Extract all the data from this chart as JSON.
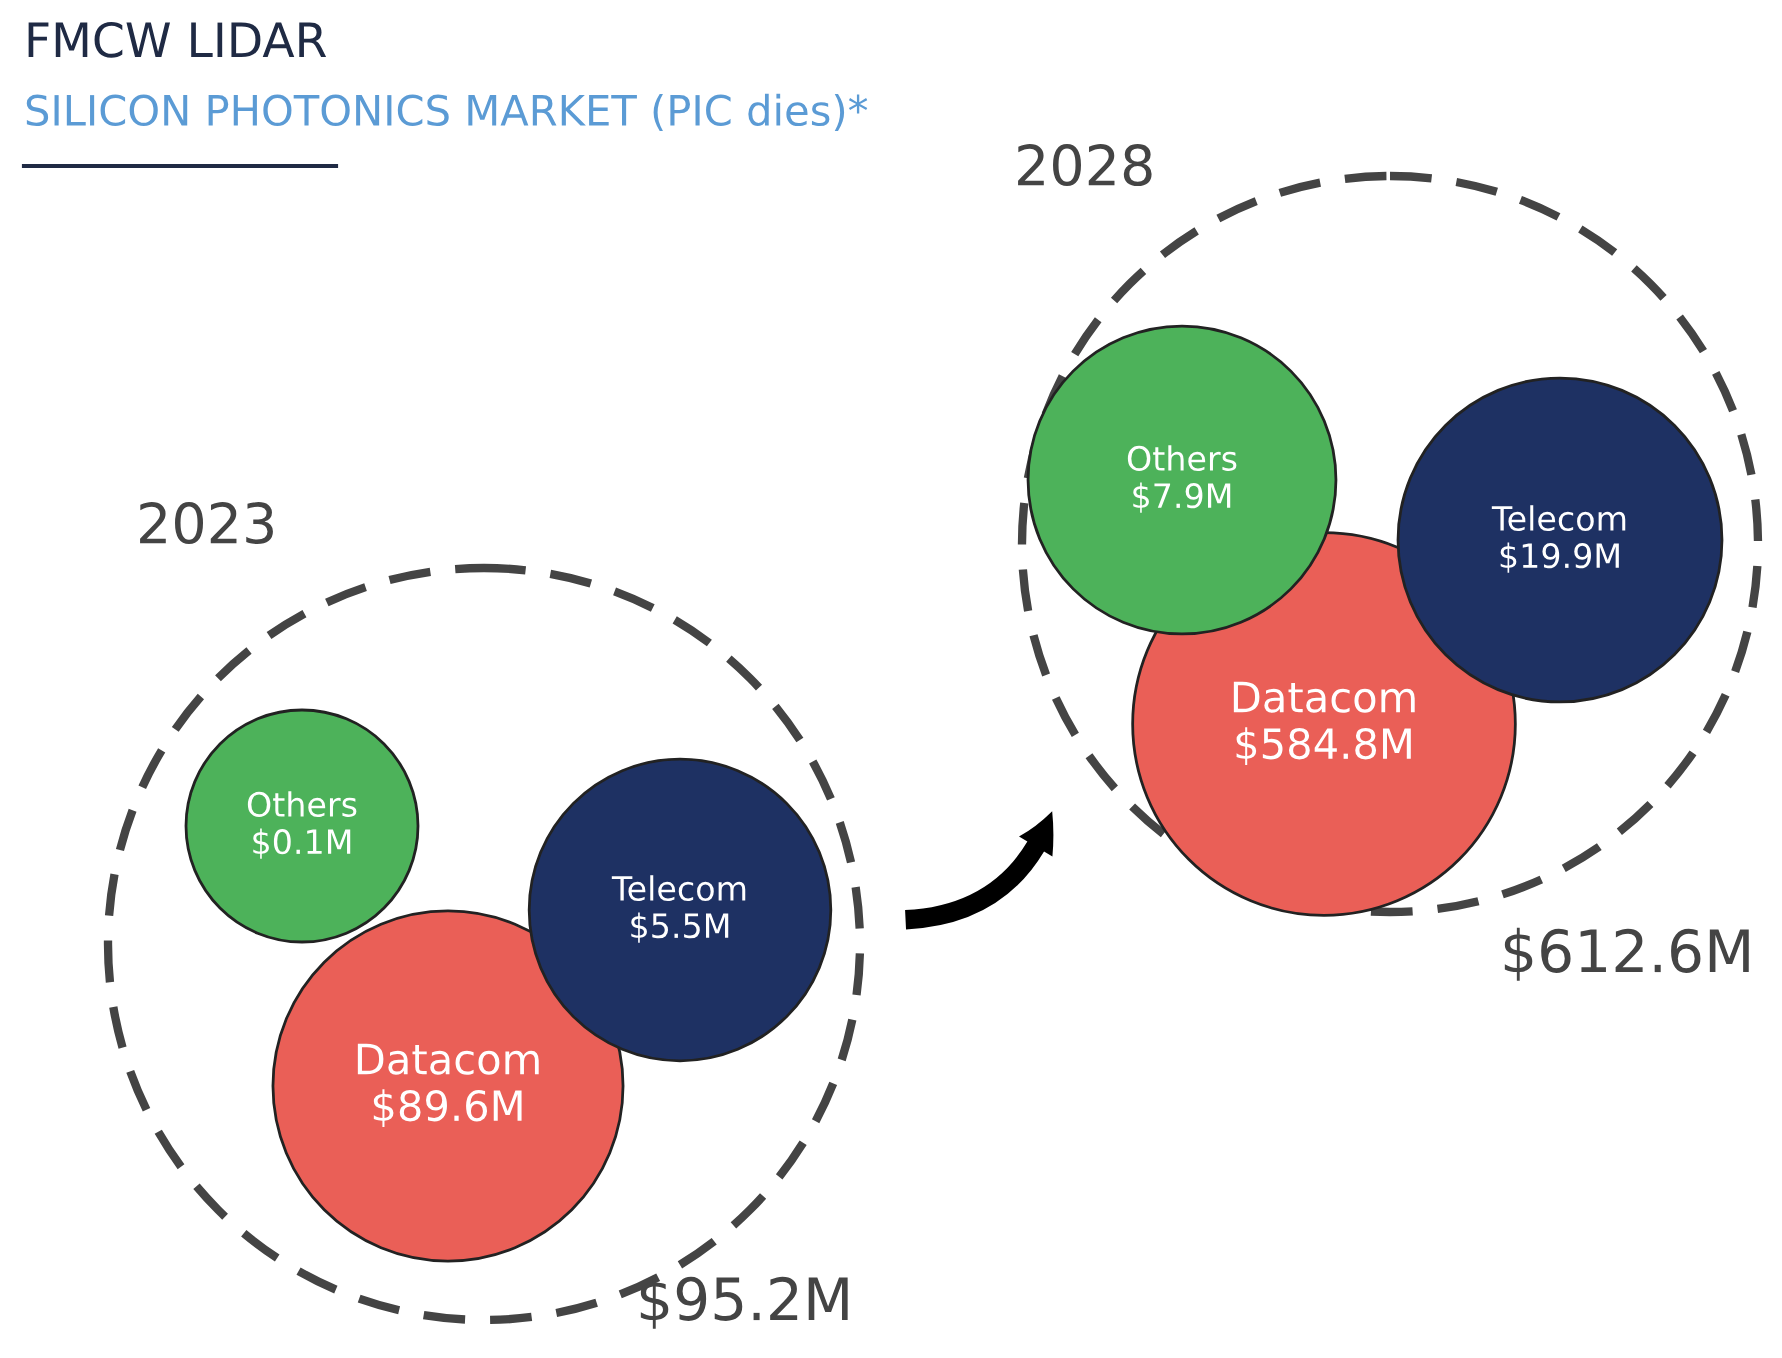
{
  "chart_data": [
    {
      "type": "other",
      "title": "FMCW LIDAR",
      "subtitle": "SILICON PHOTONICS MARKET (PIC dies)*"
    },
    {
      "type": "other",
      "title": "2023",
      "categories": [
        "Datacom",
        "Telecom",
        "Others"
      ],
      "values": [
        89.6,
        5.5,
        0.1
      ],
      "value_labels": [
        "$89.6M",
        "$5.5M",
        "$0.1M"
      ],
      "colors": [
        "#ea5f57",
        "#1e3163",
        "#4db25a"
      ],
      "annotations": [
        "$95.2M"
      ]
    },
    {
      "type": "other",
      "title": "2028",
      "categories": [
        "Datacom",
        "Telecom",
        "Others"
      ],
      "values": [
        584.8,
        19.9,
        7.9
      ],
      "value_labels": [
        "$584.8M",
        "$19.9M",
        "$7.9M"
      ],
      "colors": [
        "#ea5f57",
        "#1e3163",
        "#4db25a"
      ],
      "annotations": [
        "$612.6M"
      ]
    }
  ]
}
